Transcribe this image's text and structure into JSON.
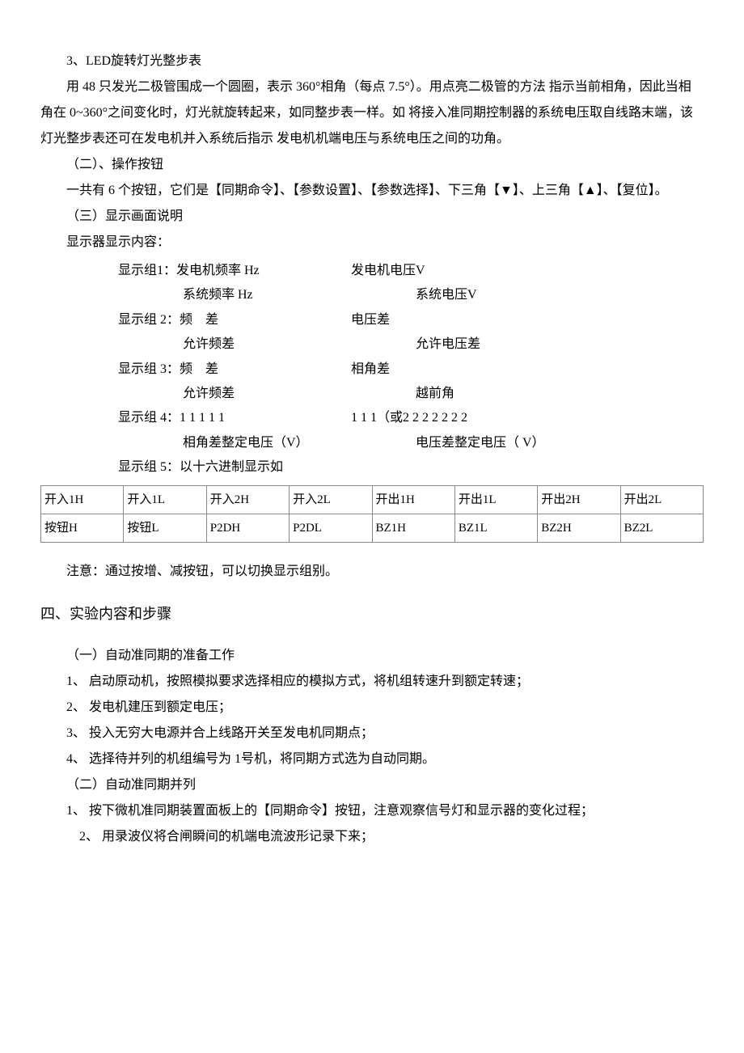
{
  "p1": "3、LED旋转灯光整步表",
  "p2": "用 48 只发光二极管围成一个圆圈，表示 360°相角（每点 7.5°）。用点亮二极管的方法 指示当前相角，因此当相角在 0~360°之间变化时，灯光就旋转起来，如同整步表一样。如 将接入准同期控制器的系统电压取自线路末端，该灯光整步表还可在发电机并入系统后指示 发电机机端电压与系统电压之间的功角。",
  "p3": "（二）、操作按钮",
  "p4": "一共有 6 个按钮，它们是【同期命令】、【参数设置】、【参数选择】、下三角【▼】、上三角【▲】、【复位】。",
  "p5": "（三）显示画面说明",
  "p6": "显示器显示内容：",
  "groups": {
    "g1": {
      "l1l": "显示组1：发电机频率 Hz",
      "l1r": "发电机电压V",
      "l2l": "系统频率 Hz",
      "l2r": "系统电压V"
    },
    "g2": {
      "l1l": "显示组 2：频　差",
      "l1r": "电压差",
      "l2l": "允许频差",
      "l2r": "允许电压差"
    },
    "g3": {
      "l1l": "显示组 3：频　差",
      "l1r": "相角差",
      "l2l": "允许频差",
      "l2r": "越前角"
    },
    "g4": {
      "l1l": "显示组 4：1 1 1 1 1",
      "l1r": "1 1 1（或2 2 2 2 2 2 2",
      "l2l": "相角差整定电压（V）",
      "l2r": "电压差整定电压（ V）"
    },
    "g5": {
      "l1l": "显示组 5：以十六进制显示如"
    }
  },
  "table": {
    "r1": [
      "开入1H",
      "开入1L",
      "开入2H",
      "开入2L",
      "开出1H",
      "开出1L",
      "开出2H",
      "开出2L"
    ],
    "r2": [
      "按钮H",
      "按钮L",
      "P2DH",
      "P2DL",
      "BZ1H",
      "BZ1L",
      "BZ2H",
      "BZ2L"
    ]
  },
  "p7": "注意：通过按增、减按钮，可以切换显示组别。",
  "h4": "四、实验内容和步骤",
  "s1": "（一）自动准同期的准备工作",
  "s1_1": "1、 启动原动机，按照模拟要求选择相应的模拟方式，将机组转速升到额定转速；",
  "s1_2": "2、 发电机建压到额定电压；",
  "s1_3": "3、 投入无穷大电源并合上线路开关至发电机同期点；",
  "s1_4": "4、 选择待并列的机组编号为 1号机，将同期方式选为自动同期。",
  "s2": "（二）自动准同期并列",
  "s2_1": "1、 按下微机准同期装置面板上的【同期命令】按钮，注意观察信号灯和显示器的变化过程；",
  "s2_2": "2、 用录波仪将合闸瞬间的机端电流波形记录下来；"
}
